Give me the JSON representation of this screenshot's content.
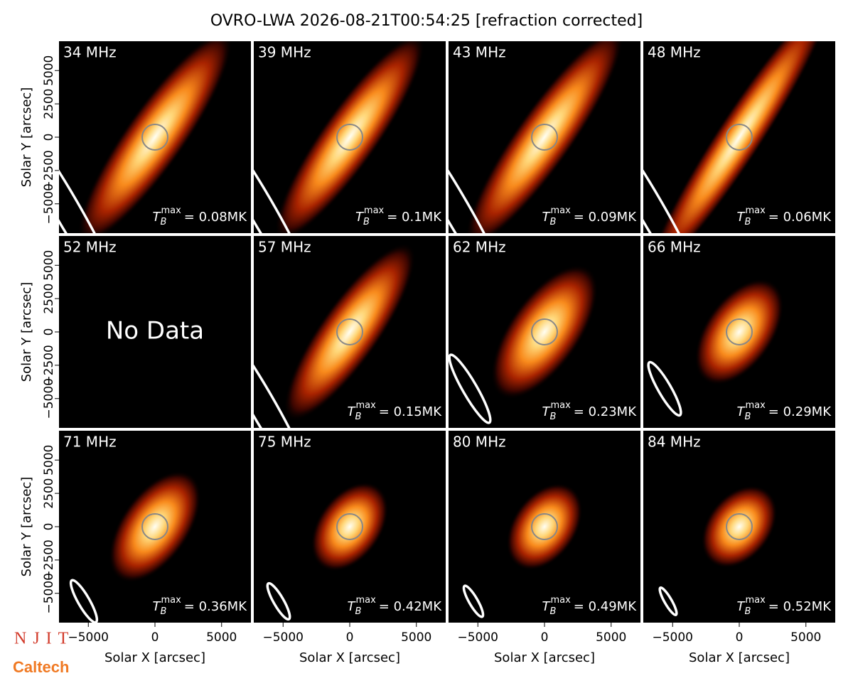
{
  "title": "OVRO-LWA 2026-08-21T00:54:25 [refraction corrected]",
  "logos": [
    "NJIT",
    "Caltech"
  ],
  "chart_data": [
    {
      "type": "image",
      "title": "34 MHz",
      "annotation": {
        "symbol": "T",
        "sub": "B",
        "sup": "max",
        "text": "= 0.08MK"
      },
      "xlim": [
        -7200,
        7200
      ],
      "ylim": [
        -7200,
        7200
      ],
      "ylabel": "Solar Y [arcsec]",
      "yticks": [
        {
          "value": -5000,
          "label": "−5000"
        },
        {
          "value": -2500,
          "label": "−2500"
        },
        0,
        2500,
        5000
      ]
    },
    {
      "type": "image",
      "title": "39 MHz",
      "annotation": {
        "symbol": "T",
        "sub": "B",
        "sup": "max",
        "text": "= 0.1MK"
      },
      "xlim": [
        -7200,
        7200
      ],
      "ylim": [
        -7200,
        7200
      ]
    },
    {
      "type": "image",
      "title": "43 MHz",
      "annotation": {
        "symbol": "T",
        "sub": "B",
        "sup": "max",
        "text": "= 0.09MK"
      },
      "xlim": [
        -7200,
        7200
      ],
      "ylim": [
        -7200,
        7200
      ]
    },
    {
      "type": "image",
      "title": "48 MHz",
      "annotation": {
        "symbol": "T",
        "sub": "B",
        "sup": "max",
        "text": "= 0.06MK"
      },
      "xlim": [
        -7200,
        7200
      ],
      "ylim": [
        -7200,
        7200
      ]
    },
    {
      "type": "empty",
      "title": "52 MHz",
      "note": "No Data",
      "xlim": [
        -7200,
        7200
      ],
      "ylim": [
        -7200,
        7200
      ],
      "ylabel": "Solar Y [arcsec]",
      "yticks": [
        {
          "value": -5000,
          "label": "−5000"
        },
        {
          "value": -2500,
          "label": "−2500"
        },
        0,
        2500,
        5000
      ]
    },
    {
      "type": "image",
      "title": "57 MHz",
      "annotation": {
        "symbol": "T",
        "sub": "B",
        "sup": "max",
        "text": "= 0.15MK"
      },
      "xlim": [
        -7200,
        7200
      ],
      "ylim": [
        -7200,
        7200
      ]
    },
    {
      "type": "image",
      "title": "62 MHz",
      "annotation": {
        "symbol": "T",
        "sub": "B",
        "sup": "max",
        "text": "= 0.23MK"
      },
      "xlim": [
        -7200,
        7200
      ],
      "ylim": [
        -7200,
        7200
      ]
    },
    {
      "type": "image",
      "title": "66 MHz",
      "annotation": {
        "symbol": "T",
        "sub": "B",
        "sup": "max",
        "text": "= 0.29MK"
      },
      "xlim": [
        -7200,
        7200
      ],
      "ylim": [
        -7200,
        7200
      ]
    },
    {
      "type": "image",
      "title": "71 MHz",
      "annotation": {
        "symbol": "T",
        "sub": "B",
        "sup": "max",
        "text": "= 0.36MK"
      },
      "xlim": [
        -7200,
        7200
      ],
      "ylim": [
        -7200,
        7200
      ],
      "ylabel": "Solar Y [arcsec]",
      "xlabel": "Solar X [arcsec]",
      "yticks": [
        {
          "value": -5000,
          "label": "−5000"
        },
        {
          "value": -2500,
          "label": "−2500"
        },
        0,
        2500,
        5000
      ],
      "xticks": [
        {
          "value": -5000,
          "label": "−5000"
        },
        0,
        5000
      ]
    },
    {
      "type": "image",
      "title": "75 MHz",
      "annotation": {
        "symbol": "T",
        "sub": "B",
        "sup": "max",
        "text": "= 0.42MK"
      },
      "xlim": [
        -7200,
        7200
      ],
      "ylim": [
        -7200,
        7200
      ],
      "xlabel": "Solar X [arcsec]",
      "xticks": [
        {
          "value": -5000,
          "label": "−5000"
        },
        0,
        5000
      ]
    },
    {
      "type": "image",
      "title": "80 MHz",
      "annotation": {
        "symbol": "T",
        "sub": "B",
        "sup": "max",
        "text": "= 0.49MK"
      },
      "xlim": [
        -7200,
        7200
      ],
      "ylim": [
        -7200,
        7200
      ],
      "xlabel": "Solar X [arcsec]",
      "xticks": [
        {
          "value": -5000,
          "label": "−5000"
        },
        0,
        5000
      ]
    },
    {
      "type": "image",
      "title": "84 MHz",
      "annotation": {
        "symbol": "T",
        "sub": "B",
        "sup": "max",
        "text": "= 0.52MK"
      },
      "xlim": [
        -7200,
        7200
      ],
      "ylim": [
        -7200,
        7200
      ],
      "xlabel": "Solar X [arcsec]",
      "xticks": [
        {
          "value": -5000,
          "label": "−5000"
        },
        0,
        5000
      ]
    }
  ]
}
